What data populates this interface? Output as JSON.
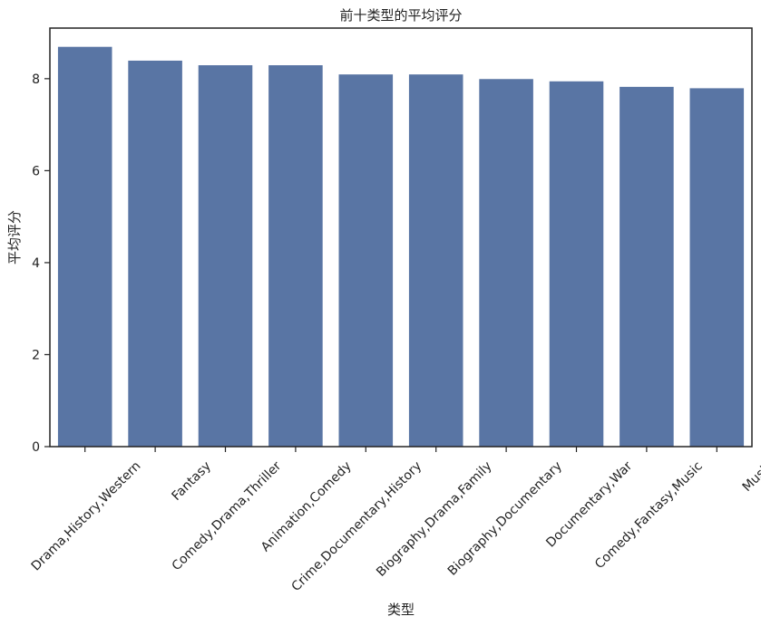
{
  "chart_data": {
    "type": "bar",
    "title": "前十类型的平均评分",
    "xlabel": "类型",
    "ylabel": "平均评分",
    "categories": [
      "Drama,History,Western",
      "Fantasy",
      "Comedy,Drama,Thriller",
      "Animation,Comedy",
      "Crime,Documentary,History",
      "Biography,Drama,Family",
      "Biography,Documentary",
      "Documentary,War",
      "Comedy,Fantasy,Music",
      "Music"
    ],
    "values": [
      8.7,
      8.4,
      8.3,
      8.3,
      8.1,
      8.1,
      8.0,
      7.95,
      7.83,
      7.8
    ],
    "ylim": [
      0,
      9.1
    ],
    "yticks": [
      0,
      2,
      4,
      6,
      8
    ],
    "grid": false,
    "bar_color": "#5975a4"
  }
}
